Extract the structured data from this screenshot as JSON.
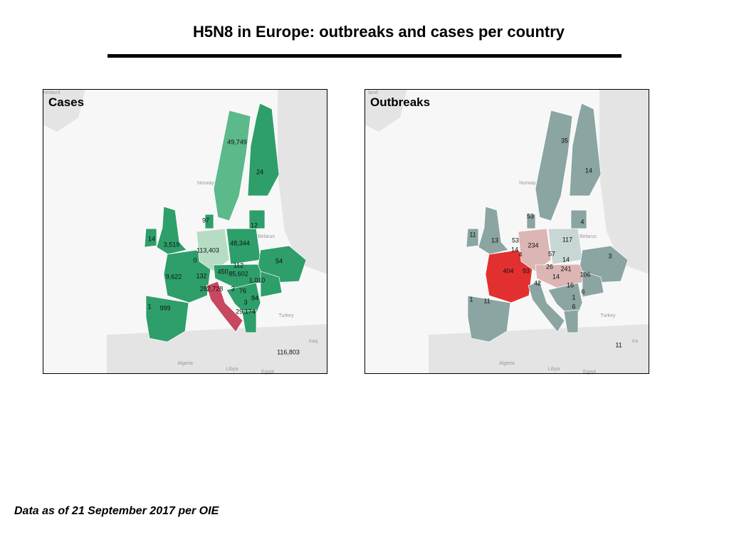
{
  "title": "H5N8 in Europe: outbreaks and cases per country",
  "footnote": "Data as of 21 September 2017 per OIE",
  "maps": [
    {
      "title": "Cases",
      "places": [
        "eenland",
        "Norway",
        "Belarus",
        "Turkey",
        "Iraq",
        "Algeria",
        "Libya",
        "Egypt"
      ],
      "labels": [
        "49,749",
        "24",
        "97",
        "12",
        "14",
        "3,519",
        "48,344",
        "113,403",
        "0",
        "54",
        "112",
        "450",
        "85,602",
        "9,622",
        "132",
        "1,010",
        "282,728",
        "3",
        "76",
        "84",
        "1",
        "999",
        "3",
        "29,174",
        "116,803"
      ]
    },
    {
      "title": "Outbreaks",
      "places": [
        "land",
        "Norway",
        "Belarus",
        "Turkey",
        "Ira",
        "Algeria",
        "Libya",
        "Egypt"
      ],
      "labels": [
        "35",
        "14",
        "53",
        "4",
        "11",
        "13",
        "53",
        "117",
        "234",
        "14",
        "4",
        "3",
        "57",
        "14",
        "26",
        "241",
        "404",
        "93",
        "106",
        "14",
        "42",
        "16",
        "6",
        "1",
        "1",
        "11",
        "6",
        "11"
      ]
    }
  ]
}
